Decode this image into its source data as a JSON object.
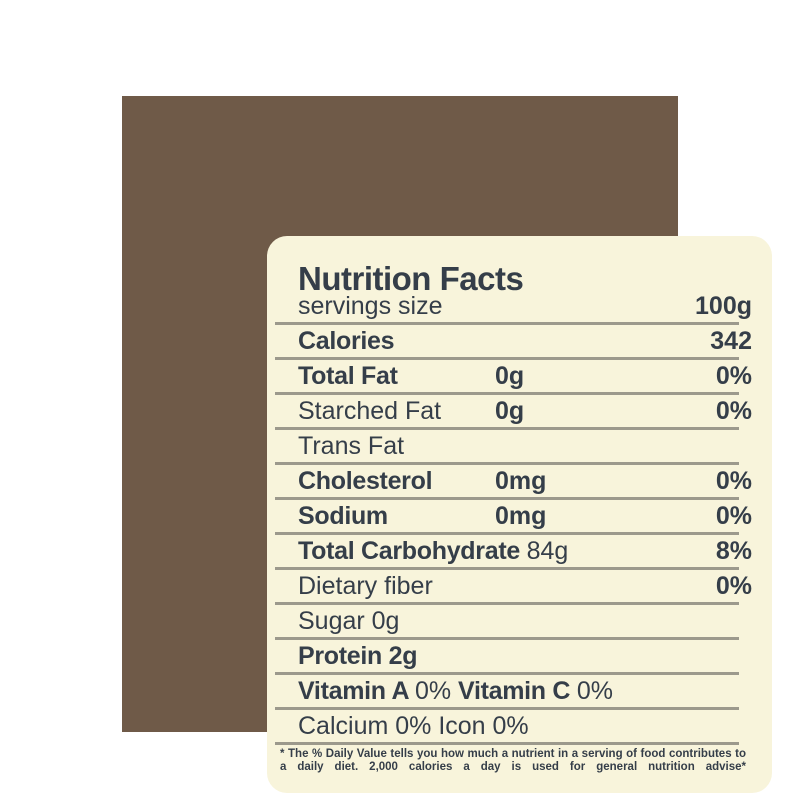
{
  "page": {
    "background_color": "#FFFFFF"
  },
  "panel": {
    "background_color": "#6F5A48"
  },
  "label": {
    "background_color": "#F8F4DB",
    "ink_color": "#353E49",
    "rule_color": "#9C998C",
    "title": "Nutrition Facts",
    "rows": [
      {
        "label_parts": [
          {
            "text": "servings size",
            "bold": false
          }
        ],
        "amount": "",
        "value": "100g"
      },
      {
        "label_parts": [
          {
            "text": "Calories",
            "bold": true
          }
        ],
        "amount": "",
        "value": "342"
      },
      {
        "label_parts": [
          {
            "text": "Total Fat",
            "bold": true
          }
        ],
        "amount": "0g",
        "value": "0%"
      },
      {
        "label_parts": [
          {
            "text": "Starched Fat",
            "bold": false
          }
        ],
        "amount": "0g",
        "value": "0%"
      },
      {
        "label_parts": [
          {
            "text": "Trans Fat",
            "bold": false
          }
        ],
        "amount": "",
        "value": ""
      },
      {
        "label_parts": [
          {
            "text": "Cholesterol",
            "bold": true
          }
        ],
        "amount": "0mg",
        "value": "0%"
      },
      {
        "label_parts": [
          {
            "text": "Sodium",
            "bold": true
          }
        ],
        "amount": "0mg",
        "value": "0%"
      },
      {
        "label_parts": [
          {
            "text": "Total Carbohydrate ",
            "bold": true
          },
          {
            "text": "84g",
            "bold": false
          }
        ],
        "amount": "",
        "value": "8%"
      },
      {
        "label_parts": [
          {
            "text": "Dietary fiber",
            "bold": false
          }
        ],
        "amount": "",
        "value": "0%"
      },
      {
        "label_parts": [
          {
            "text": "Sugar 0g",
            "bold": false
          }
        ],
        "amount": "",
        "value": ""
      },
      {
        "label_parts": [
          {
            "text": "Protein 2g",
            "bold": true
          }
        ],
        "amount": "",
        "value": ""
      },
      {
        "label_parts": [
          {
            "text": "Vitamin A ",
            "bold": true
          },
          {
            "text": "0% ",
            "bold": false
          },
          {
            "text": "Vitamin C ",
            "bold": true
          },
          {
            "text": "0%",
            "bold": false
          }
        ],
        "amount": "",
        "value": ""
      },
      {
        "label_parts": [
          {
            "text": "Calcium 0% Icon 0%",
            "bold": false
          }
        ],
        "amount": "",
        "value": ""
      }
    ],
    "footnote": "* The % Daily Value tells you how much a nutrient in a serving of food contributes to a daily diet. 2,000 calories a day is used for general nutrition advise*"
  }
}
